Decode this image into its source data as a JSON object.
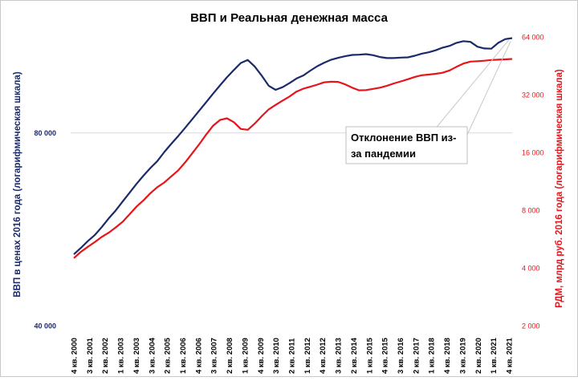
{
  "chart_data": {
    "type": "line",
    "title": "ВВП и Реальная денежная масса",
    "ylabel_left": "ВВП в ценах 2016 года  (логарифмическая  шкала)",
    "ylabel_right": "РДМ, млрд руб. 2016 года  (логарифмическая  шкала)",
    "y_left_scale": "log",
    "y_right_scale": "log",
    "y_left_ticks": [
      {
        "value": 40000,
        "label": "40 000"
      },
      {
        "value": 80000,
        "label": "80 000"
      }
    ],
    "y_right_ticks": [
      {
        "value": 2000,
        "label": "2 000"
      },
      {
        "value": 4000,
        "label": "4 000"
      },
      {
        "value": 8000,
        "label": "8 000"
      },
      {
        "value": 16000,
        "label": "16 000"
      },
      {
        "value": 32000,
        "label": "32 000"
      },
      {
        "value": 64000,
        "label": "64 000"
      }
    ],
    "y_left_range": [
      40000,
      113000
    ],
    "y_right_range": [
      2000,
      64000
    ],
    "x_ticks": [
      "4 кв. 2000",
      "3 кв. 2001",
      "2 кв. 2002",
      "1 кв. 2003",
      "4 кв. 2003",
      "3 кв. 2004",
      "2 кв. 2005",
      "1 кв. 2006",
      "4 кв. 2006",
      "3 кв. 2007",
      "2 кв. 2008",
      "1 кв. 2009",
      "4 кв. 2009",
      "3 кв. 2010",
      "2 кв. 2011",
      "1 кв. 2012",
      "4 кв. 2012",
      "3 кв. 2013",
      "2 кв. 2014",
      "1 кв. 2015",
      "4 кв. 2015",
      "3 кв. 2016",
      "2 кв. 2017",
      "1 кв. 2018",
      "4 кв. 2018",
      "3 кв. 2019",
      "2 кв. 2020",
      "1 кв. 2021",
      "4 кв. 2021"
    ],
    "gridlines": "horizontal at 80 000",
    "series": [
      {
        "axis": "left",
        "color": "#1b2a6b",
        "values": [
          51700,
          52900,
          54200,
          55400,
          57000,
          58800,
          60500,
          62500,
          64500,
          66600,
          68600,
          70500,
          72300,
          74700,
          76900,
          79100,
          81500,
          84000,
          86600,
          89300,
          92100,
          94900,
          97700,
          100300,
          102900,
          104000,
          101600,
          98300,
          94800,
          93400,
          94300,
          95700,
          97300,
          98400,
          100100,
          101700,
          103000,
          104100,
          104800,
          105400,
          105900,
          106000,
          106200,
          105800,
          105100,
          104700,
          104700,
          104900,
          105000,
          105600,
          106400,
          106900,
          107700,
          108700,
          109400,
          110600,
          111300,
          111000,
          109100,
          108400,
          108300,
          110600,
          112100,
          112500
        ]
      },
      {
        "axis": "right",
        "color": "#e8141b",
        "values": [
          4500,
          4850,
          5150,
          5450,
          5800,
          6100,
          6500,
          6950,
          7600,
          8350,
          9000,
          9800,
          10550,
          11150,
          12000,
          12900,
          14200,
          15800,
          17600,
          19800,
          22000,
          23600,
          24100,
          23000,
          21200,
          21000,
          22600,
          24700,
          26800,
          28300,
          29800,
          31300,
          33200,
          34400,
          35200,
          36100,
          37100,
          37400,
          37300,
          36200,
          34800,
          33700,
          33800,
          34300,
          34800,
          35600,
          36600,
          37500,
          38500,
          39600,
          40400,
          40700,
          41100,
          41600,
          42800,
          44700,
          46500,
          47600,
          47800,
          48100,
          48500,
          48700,
          48900,
          49100
        ]
      }
    ],
    "annotation": "Отклонение  ВВП  из-\nза пандемии"
  }
}
